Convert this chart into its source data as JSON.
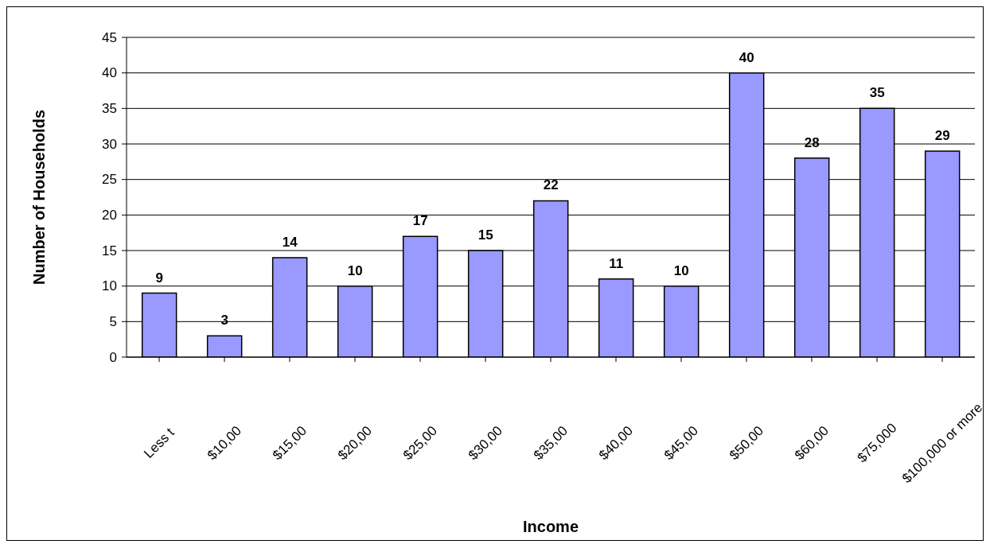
{
  "chart_data": {
    "type": "bar",
    "xlabel": "Income",
    "ylabel": "Number of Households",
    "categories": [
      "Less t",
      "$10,00",
      "$15,00",
      "$20,00",
      "$25,00",
      "$30,00",
      "$35,00",
      "$40,00",
      "$45,00",
      "$50,00",
      "$60,00",
      "$75,000",
      "$100,000 or more"
    ],
    "values": [
      9,
      3,
      14,
      10,
      17,
      15,
      22,
      11,
      10,
      40,
      28,
      35,
      29
    ],
    "color": "#9999ff",
    "ylim": [
      0,
      45
    ],
    "yticks": [
      0,
      5,
      10,
      15,
      20,
      25,
      30,
      35,
      40,
      45
    ],
    "grid": "y",
    "data_labels": true
  }
}
